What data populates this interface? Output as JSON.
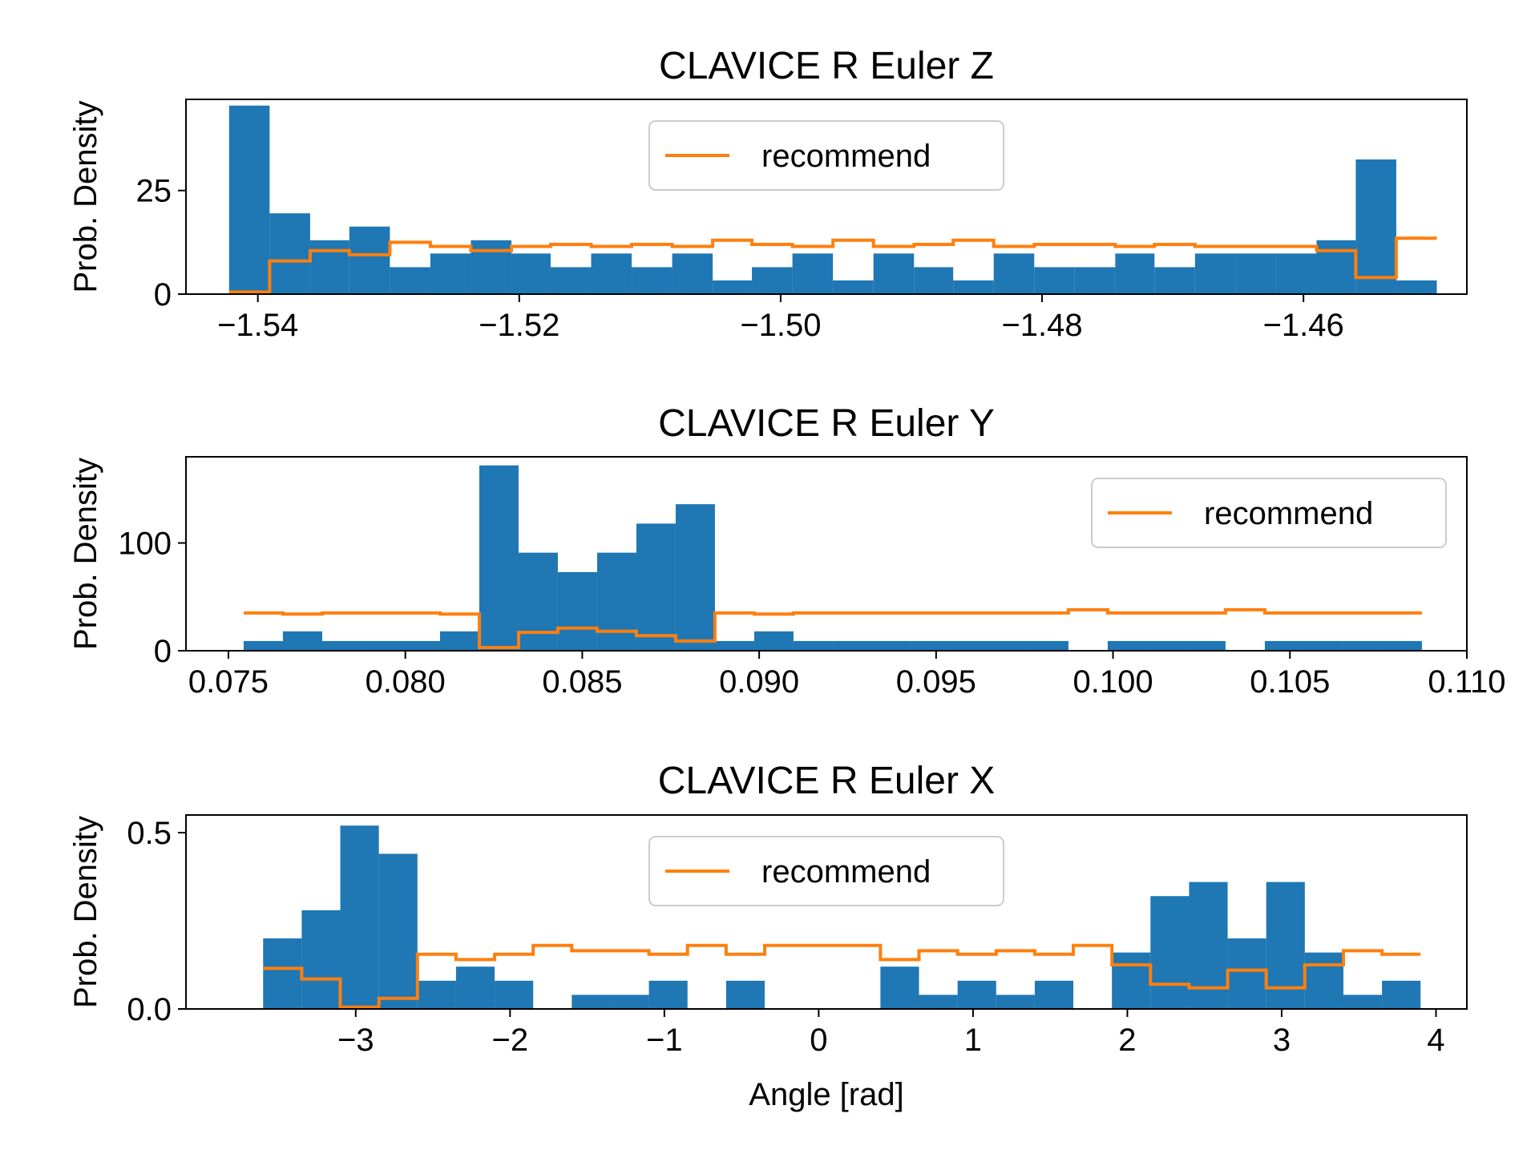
{
  "colors": {
    "hist": "#1f77b4",
    "recommend": "#ff7f0e",
    "axis": "#000000",
    "legend_border": "#cccccc"
  },
  "figure": {
    "shared_xlabel": "Angle [rad]"
  },
  "chart_data": [
    {
      "type": "histogram",
      "title": "CLAVICE R Euler Z",
      "ylabel": "Prob. Density",
      "xlabel": "",
      "xlim": [
        -1.5455,
        -1.4475
      ],
      "ylim": [
        0,
        47
      ],
      "xticks": [
        -1.54,
        -1.52,
        -1.5,
        -1.48,
        -1.46
      ],
      "xtick_labels": [
        "−1.54",
        "−1.52",
        "−1.50",
        "−1.48",
        "−1.46"
      ],
      "yticks": [
        0,
        25
      ],
      "ytick_labels": [
        "0",
        "25"
      ],
      "legend": {
        "label": "recommend",
        "position": "upper center"
      },
      "bin_edges": [
        -1.5422,
        -1.5391,
        -1.536,
        -1.533,
        -1.5299,
        -1.5268,
        -1.5237,
        -1.5206,
        -1.5176,
        -1.5145,
        -1.5114,
        -1.5083,
        -1.5052,
        -1.5022,
        -1.4991,
        -1.496,
        -1.4929,
        -1.4898,
        -1.4868,
        -1.4837,
        -1.4806,
        -1.4775,
        -1.4744,
        -1.4714,
        -1.4683,
        -1.4652,
        -1.4621,
        -1.459,
        -1.456,
        -1.4529,
        -1.4498
      ],
      "hist_values": [
        45.5,
        19.5,
        13,
        16.3,
        6.5,
        9.8,
        13,
        9.8,
        6.5,
        9.8,
        6.5,
        9.8,
        3.3,
        6.5,
        9.8,
        3.3,
        9.8,
        6.5,
        3.3,
        9.8,
        6.5,
        6.5,
        9.8,
        6.5,
        9.8,
        9.8,
        9.8,
        13,
        32.5,
        3.3
      ],
      "recommend_values": [
        0.5,
        8,
        10.5,
        9.5,
        12.5,
        11.5,
        10.5,
        11.5,
        12,
        11.5,
        12,
        11.5,
        13,
        12,
        11.5,
        13,
        11.5,
        12,
        13,
        11.5,
        12,
        12,
        11.5,
        12,
        11.5,
        11.5,
        11.5,
        10.5,
        4,
        13.5
      ]
    },
    {
      "type": "histogram",
      "title": "CLAVICE R Euler Y",
      "ylabel": "Prob. Density",
      "xlabel": "",
      "xlim": [
        0.0738,
        0.11
      ],
      "ylim": [
        0,
        180
      ],
      "xticks": [
        0.075,
        0.08,
        0.085,
        0.09,
        0.095,
        0.1,
        0.105,
        0.11
      ],
      "xtick_labels": [
        "0.075",
        "0.080",
        "0.085",
        "0.090",
        "0.095",
        "0.100",
        "0.105",
        "0.110"
      ],
      "yticks": [
        0,
        100
      ],
      "ytick_labels": [
        "0",
        "100"
      ],
      "legend": {
        "label": "recommend",
        "position": "upper right"
      },
      "bin_edges": [
        0.07543,
        0.07654,
        0.07765,
        0.07876,
        0.07987,
        0.08098,
        0.08209,
        0.0832,
        0.08431,
        0.08542,
        0.08653,
        0.08764,
        0.08875,
        0.08986,
        0.09097,
        0.09208,
        0.09319,
        0.0943,
        0.09541,
        0.09652,
        0.09763,
        0.09874,
        0.09985,
        0.10096,
        0.10207,
        0.10318,
        0.10429,
        0.1054,
        0.10651,
        0.10762,
        0.10873
      ],
      "hist_values": [
        9,
        18,
        9,
        9,
        9,
        18,
        172,
        91,
        73,
        91,
        118,
        136,
        9,
        18,
        9,
        9,
        9,
        9,
        9,
        9,
        9,
        0,
        9,
        9,
        9,
        0,
        9,
        9,
        9,
        9
      ],
      "recommend_values": [
        35,
        34,
        35,
        35,
        35,
        34,
        3,
        17,
        21,
        18,
        14,
        9,
        35,
        34,
        35,
        35,
        35,
        35,
        35,
        35,
        35,
        38,
        35,
        35,
        35,
        38,
        35,
        35,
        35,
        35
      ]
    },
    {
      "type": "histogram",
      "title": "CLAVICE R Euler X",
      "ylabel": "Prob. Density",
      "xlabel": "Angle [rad]",
      "xlim": [
        -4.1,
        4.2
      ],
      "ylim": [
        0,
        0.55
      ],
      "xticks": [
        -3,
        -2,
        -1,
        0,
        1,
        2,
        3,
        4
      ],
      "xtick_labels": [
        "−3",
        "−2",
        "−1",
        "0",
        "1",
        "2",
        "3",
        "4"
      ],
      "yticks": [
        0.0,
        0.5
      ],
      "ytick_labels": [
        "0.0",
        "0.5"
      ],
      "legend": {
        "label": "recommend",
        "position": "upper center"
      },
      "bin_edges": [
        -3.6,
        -3.35,
        -3.1,
        -2.85,
        -2.6,
        -2.35,
        -2.1,
        -1.85,
        -1.6,
        -1.35,
        -1.1,
        -0.85,
        -0.6,
        -0.35,
        -0.1,
        0.15,
        0.4,
        0.65,
        0.9,
        1.15,
        1.4,
        1.65,
        1.9,
        2.15,
        2.4,
        2.65,
        2.9,
        3.15,
        3.4,
        3.65,
        3.9
      ],
      "hist_values": [
        0.2,
        0.28,
        0.52,
        0.44,
        0.08,
        0.12,
        0.08,
        0.0,
        0.04,
        0.04,
        0.08,
        0.0,
        0.08,
        0.0,
        0.0,
        0.0,
        0.12,
        0.04,
        0.08,
        0.04,
        0.08,
        0.0,
        0.16,
        0.32,
        0.36,
        0.2,
        0.36,
        0.16,
        0.04,
        0.08
      ],
      "recommend_values": [
        0.115,
        0.085,
        0.005,
        0.03,
        0.155,
        0.14,
        0.155,
        0.18,
        0.165,
        0.165,
        0.155,
        0.18,
        0.155,
        0.18,
        0.18,
        0.18,
        0.14,
        0.165,
        0.155,
        0.165,
        0.155,
        0.18,
        0.125,
        0.07,
        0.06,
        0.11,
        0.06,
        0.125,
        0.165,
        0.155
      ]
    }
  ]
}
